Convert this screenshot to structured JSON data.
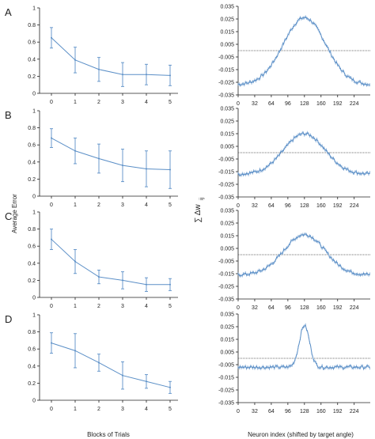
{
  "figure": {
    "left_ylabel": "Average Error",
    "left_xlabel": "Blocks of Trials",
    "right_ylabel": "∑ Δw",
    "right_ylabel_sub": "ij",
    "right_xlabel": "Neuron index (shifted by target angle)"
  },
  "style": {
    "line_color": "#5b8fc7",
    "axis_color": "#222222",
    "zero_line_color": "#444444"
  },
  "chart_data": [
    {
      "panel": "A",
      "type": "line",
      "error_bars": true,
      "x": [
        0,
        1,
        2,
        3,
        4,
        5
      ],
      "values": [
        0.65,
        0.39,
        0.28,
        0.22,
        0.22,
        0.21
      ],
      "err": [
        0.12,
        0.15,
        0.14,
        0.14,
        0.12,
        0.12
      ],
      "ylim": [
        0,
        1
      ],
      "yticks": [
        "0",
        "0.2",
        "0.4",
        "0.6",
        "0.8",
        "1"
      ],
      "xticks": [
        "0",
        "1",
        "2",
        "3",
        "4",
        "5"
      ],
      "grid": false
    },
    {
      "panel": "B",
      "type": "line",
      "error_bars": true,
      "x": [
        0,
        1,
        2,
        3,
        4,
        5
      ],
      "values": [
        0.68,
        0.53,
        0.44,
        0.36,
        0.32,
        0.31
      ],
      "err": [
        0.11,
        0.15,
        0.17,
        0.19,
        0.21,
        0.22
      ],
      "ylim": [
        0,
        1
      ],
      "yticks": [
        "0",
        "0.2",
        "0.4",
        "0.6",
        "0.8",
        "1"
      ],
      "xticks": [
        "0",
        "1",
        "2",
        "3",
        "4",
        "5"
      ],
      "grid": false
    },
    {
      "panel": "C",
      "type": "line",
      "error_bars": true,
      "x": [
        0,
        1,
        2,
        3,
        4,
        5
      ],
      "values": [
        0.68,
        0.42,
        0.24,
        0.2,
        0.15,
        0.15
      ],
      "err": [
        0.12,
        0.14,
        0.08,
        0.1,
        0.08,
        0.07
      ],
      "ylim": [
        0,
        1
      ],
      "yticks": [
        "0",
        "0.2",
        "0.4",
        "0.6",
        "0.8",
        "1"
      ],
      "xticks": [
        "0",
        "1",
        "2",
        "3",
        "4",
        "5"
      ],
      "grid": false
    },
    {
      "panel": "D",
      "type": "line",
      "error_bars": true,
      "x": [
        0,
        1,
        2,
        3,
        4,
        5
      ],
      "values": [
        0.67,
        0.58,
        0.44,
        0.29,
        0.22,
        0.15
      ],
      "err": [
        0.12,
        0.2,
        0.1,
        0.16,
        0.08,
        0.07
      ],
      "ylim": [
        0,
        1
      ],
      "yticks": [
        "0",
        "0.2",
        "0.4",
        "0.6",
        "0.8",
        "1"
      ],
      "xticks": [
        "0",
        "1",
        "2",
        "3",
        "4",
        "5"
      ],
      "grid": false
    },
    {
      "panel": "A",
      "type": "line",
      "profile": "neuron_weight_change",
      "x_range": [
        0,
        255
      ],
      "center": 128,
      "peak": 0.026,
      "baseline": -0.027,
      "width": 58,
      "ylim": [
        -0.035,
        0.035
      ],
      "yticks": [
        "0.035",
        "0.025",
        "0.015",
        "0.005",
        "-0.005",
        "-0.015",
        "-0.025",
        "-0.035"
      ],
      "xticks": [
        "0",
        "32",
        "64",
        "96",
        "128",
        "160",
        "192",
        "224"
      ],
      "zero_line": true
    },
    {
      "panel": "B",
      "type": "line",
      "profile": "neuron_weight_change",
      "x_range": [
        0,
        255
      ],
      "center": 128,
      "peak": 0.015,
      "baseline": -0.017,
      "width": 56,
      "ylim": [
        -0.035,
        0.035
      ],
      "yticks": [
        "0.035",
        "0.025",
        "0.015",
        "0.005",
        "-0.005",
        "-0.015",
        "-0.025",
        "-0.035"
      ],
      "xticks": [
        "0",
        "32",
        "64",
        "96",
        "128",
        "160",
        "192",
        "224"
      ],
      "zero_line": true
    },
    {
      "panel": "C",
      "type": "line",
      "profile": "neuron_weight_change",
      "x_range": [
        0,
        255
      ],
      "center": 128,
      "peak": 0.016,
      "baseline": -0.016,
      "width": 56,
      "ylim": [
        -0.035,
        0.035
      ],
      "yticks": [
        "0.035",
        "0.025",
        "0.015",
        "0.005",
        "-0.005",
        "-0.015",
        "-0.025",
        "-0.035"
      ],
      "xticks": [
        "0",
        "32",
        "64",
        "96",
        "128",
        "160",
        "192",
        "224"
      ],
      "zero_line": true
    },
    {
      "panel": "D",
      "type": "line",
      "profile": "neuron_weight_change",
      "x_range": [
        0,
        255
      ],
      "center": 128,
      "peak": 0.026,
      "baseline": -0.007,
      "width": 14,
      "ylim": [
        -0.035,
        0.035
      ],
      "yticks": [
        "0.035",
        "0.025",
        "0.015",
        "0.005",
        "-0.005",
        "-0.015",
        "-0.025",
        "-0.035"
      ],
      "xticks": [
        "0",
        "32",
        "64",
        "96",
        "128",
        "160",
        "192",
        "224"
      ],
      "zero_line": true
    }
  ]
}
